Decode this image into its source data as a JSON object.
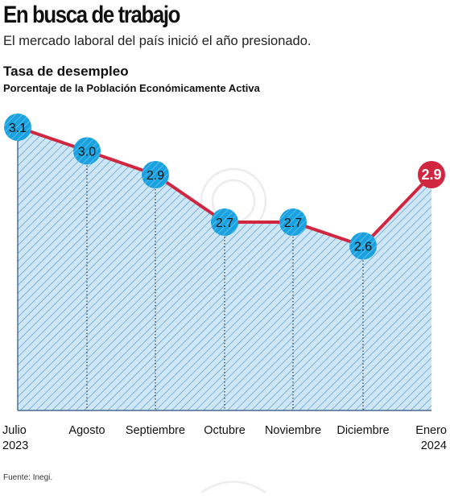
{
  "header": {
    "headline": "En busca de trabajo",
    "deck": "El mercado laboral del país inició el año presionado."
  },
  "source": "Fuente: Inegi.",
  "colors": {
    "line": "#d0263f",
    "marker": "#1aa2e0",
    "highlight": "#d0263f",
    "area_fill": "#cfe6f5",
    "hatch": "#4f97c9"
  },
  "chart_data": {
    "type": "area",
    "title": "Tasa de desempleo",
    "subtitle": "Porcentaje de la Población Económicamente Activa",
    "categories": [
      [
        "Julio",
        "2023"
      ],
      [
        "Agosto"
      ],
      [
        "Septiembre"
      ],
      [
        "Octubre"
      ],
      [
        "Noviembre"
      ],
      [
        "Diciembre"
      ],
      [
        "Enero",
        "2024"
      ]
    ],
    "series": [
      {
        "values": [
          3.1,
          3.0,
          2.9,
          2.7,
          2.7,
          2.6,
          2.9
        ],
        "labels": [
          "3.1",
          "3.0",
          "2.9",
          "2.7",
          "2.7",
          "2.6",
          "2.9"
        ]
      }
    ],
    "highlight_index": 6,
    "grid": false,
    "legend": "none"
  }
}
